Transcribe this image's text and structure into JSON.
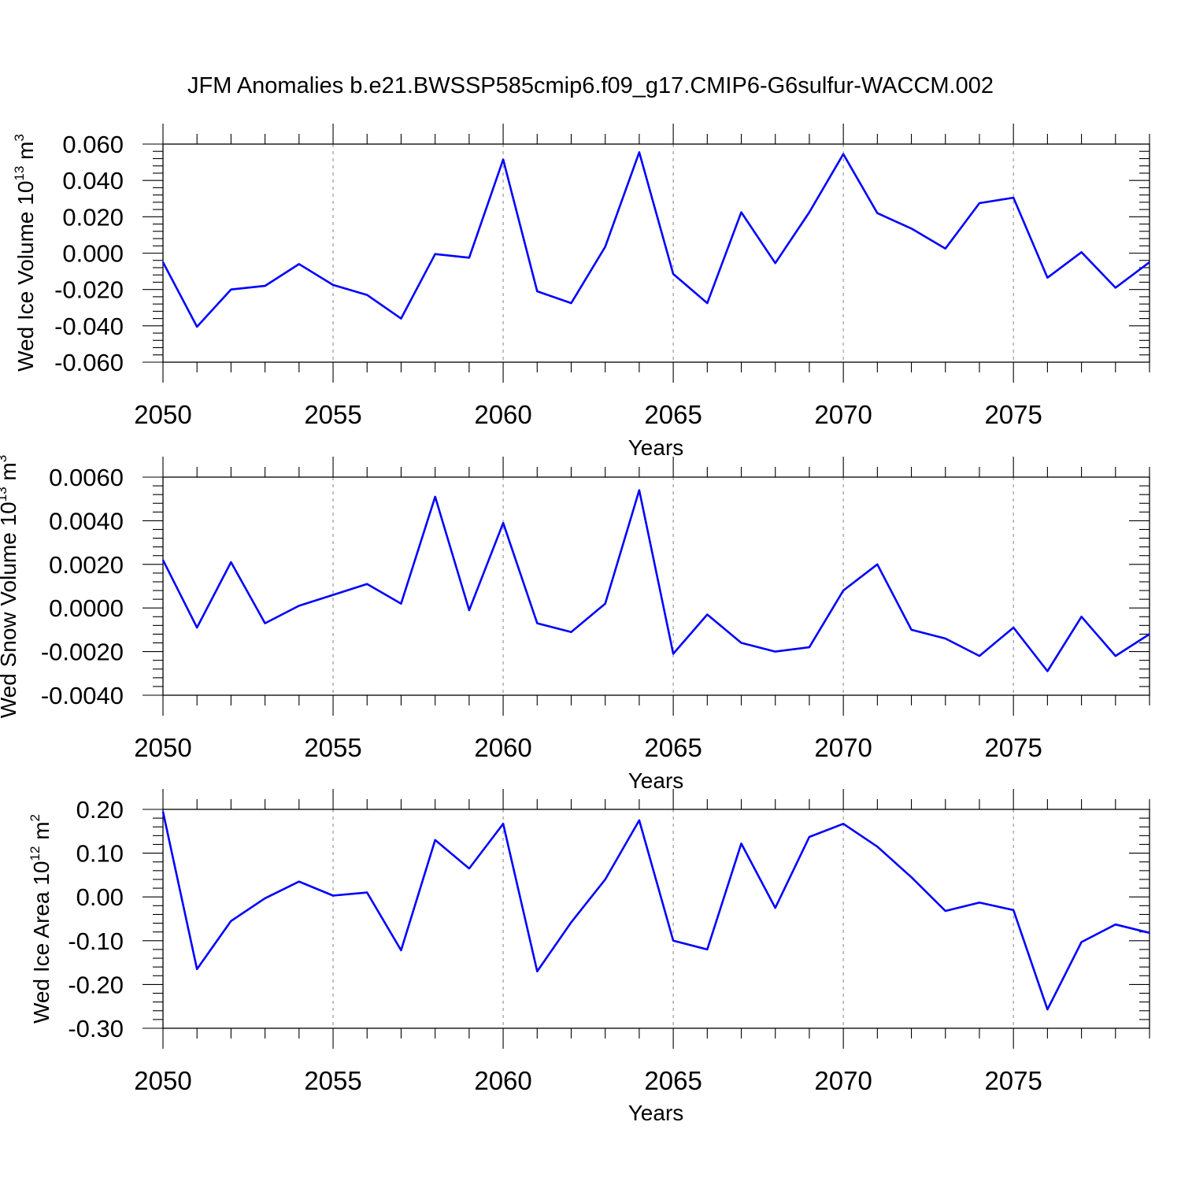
{
  "title": "JFM Anomalies b.e21.BWSSP585cmip6.f09_g17.CMIP6-G6sulfur-WACCM.002",
  "chart_data": [
    {
      "type": "line",
      "xlabel": "Years",
      "ylabel": {
        "base": "Wed Ice Volume 10",
        "exp": "13",
        "unit": " m",
        "unit_exp": "3"
      },
      "xlim": [
        2050,
        2079
      ],
      "ylim": [
        -0.06,
        0.06
      ],
      "x_ticks": [
        "2050",
        "2055",
        "2060",
        "2065",
        "2070",
        "2075"
      ],
      "y_ticks": [
        "0.060",
        "0.040",
        "0.020",
        "0.000",
        "-0.020",
        "-0.040",
        "-0.060"
      ],
      "grid": "dashed vertical at major x ticks",
      "color": "#0000ff",
      "x": [
        2050,
        2051,
        2052,
        2053,
        2054,
        2055,
        2056,
        2057,
        2058,
        2059,
        2060,
        2061,
        2062,
        2063,
        2064,
        2065,
        2066,
        2067,
        2068,
        2069,
        2070,
        2071,
        2072,
        2073,
        2074,
        2075,
        2076,
        2077,
        2078,
        2079
      ],
      "values": [
        -0.005,
        -0.0405,
        -0.02,
        -0.018,
        -0.006,
        -0.0175,
        -0.023,
        -0.036,
        -0.0005,
        -0.0025,
        0.0515,
        -0.021,
        -0.0275,
        0.0035,
        0.0555,
        -0.0115,
        -0.0275,
        0.0225,
        -0.0055,
        0.0225,
        0.0545,
        0.022,
        0.0135,
        0.0025,
        0.0275,
        0.0305,
        -0.0135,
        0.0005,
        -0.019,
        -0.005
      ]
    },
    {
      "type": "line",
      "xlabel": "Years",
      "ylabel": {
        "base": "Wed Snow Volume 10",
        "exp": "13",
        "unit": " m",
        "unit_exp": "3"
      },
      "xlim": [
        2050,
        2079
      ],
      "ylim": [
        -0.004,
        0.006
      ],
      "x_ticks": [
        "2050",
        "2055",
        "2060",
        "2065",
        "2070",
        "2075"
      ],
      "y_ticks": [
        "0.0060",
        "0.0040",
        "0.0020",
        "0.0000",
        "-0.0020",
        "-0.0040"
      ],
      "grid": "dashed vertical at major x ticks",
      "color": "#0000ff",
      "x": [
        2050,
        2051,
        2052,
        2053,
        2054,
        2055,
        2056,
        2057,
        2058,
        2059,
        2060,
        2061,
        2062,
        2063,
        2064,
        2065,
        2066,
        2067,
        2068,
        2069,
        2070,
        2071,
        2072,
        2073,
        2074,
        2075,
        2076,
        2077,
        2078,
        2079
      ],
      "values": [
        0.0022,
        -0.0009,
        0.0021,
        -0.0007,
        0.0001,
        0.0006,
        0.0011,
        0.0002,
        0.0051,
        -0.0001,
        0.0039,
        -0.0007,
        -0.0011,
        0.0002,
        0.0054,
        -0.0021,
        -0.0003,
        -0.0016,
        -0.002,
        -0.0018,
        0.0008,
        0.002,
        -0.001,
        -0.0014,
        -0.0022,
        -0.0009,
        -0.0029,
        -0.0004,
        -0.0022,
        -0.0012
      ]
    },
    {
      "type": "line",
      "xlabel": "Years",
      "ylabel": {
        "base": "Wed Ice Area 10",
        "exp": "12",
        "unit": " m",
        "unit_exp": "2"
      },
      "xlim": [
        2050,
        2079
      ],
      "ylim": [
        -0.3,
        0.2
      ],
      "x_ticks": [
        "2050",
        "2055",
        "2060",
        "2065",
        "2070",
        "2075"
      ],
      "y_ticks": [
        "0.20",
        "0.10",
        "0.00",
        "-0.10",
        "-0.20",
        "-0.30"
      ],
      "grid": "dashed vertical at major x ticks",
      "color": "#0000ff",
      "x": [
        2050,
        2051,
        2052,
        2053,
        2054,
        2055,
        2056,
        2057,
        2058,
        2059,
        2060,
        2061,
        2062,
        2063,
        2064,
        2065,
        2066,
        2067,
        2068,
        2069,
        2070,
        2071,
        2072,
        2073,
        2074,
        2075,
        2076,
        2077,
        2078,
        2079
      ],
      "values": [
        0.195,
        -0.165,
        -0.055,
        -0.003,
        0.035,
        0.003,
        0.01,
        -0.122,
        0.13,
        0.065,
        0.167,
        -0.17,
        -0.058,
        0.04,
        0.175,
        -0.1,
        -0.12,
        0.122,
        -0.025,
        0.137,
        0.167,
        0.115,
        0.045,
        -0.032,
        -0.013,
        -0.03,
        -0.257,
        -0.103,
        -0.063,
        -0.082
      ]
    }
  ]
}
